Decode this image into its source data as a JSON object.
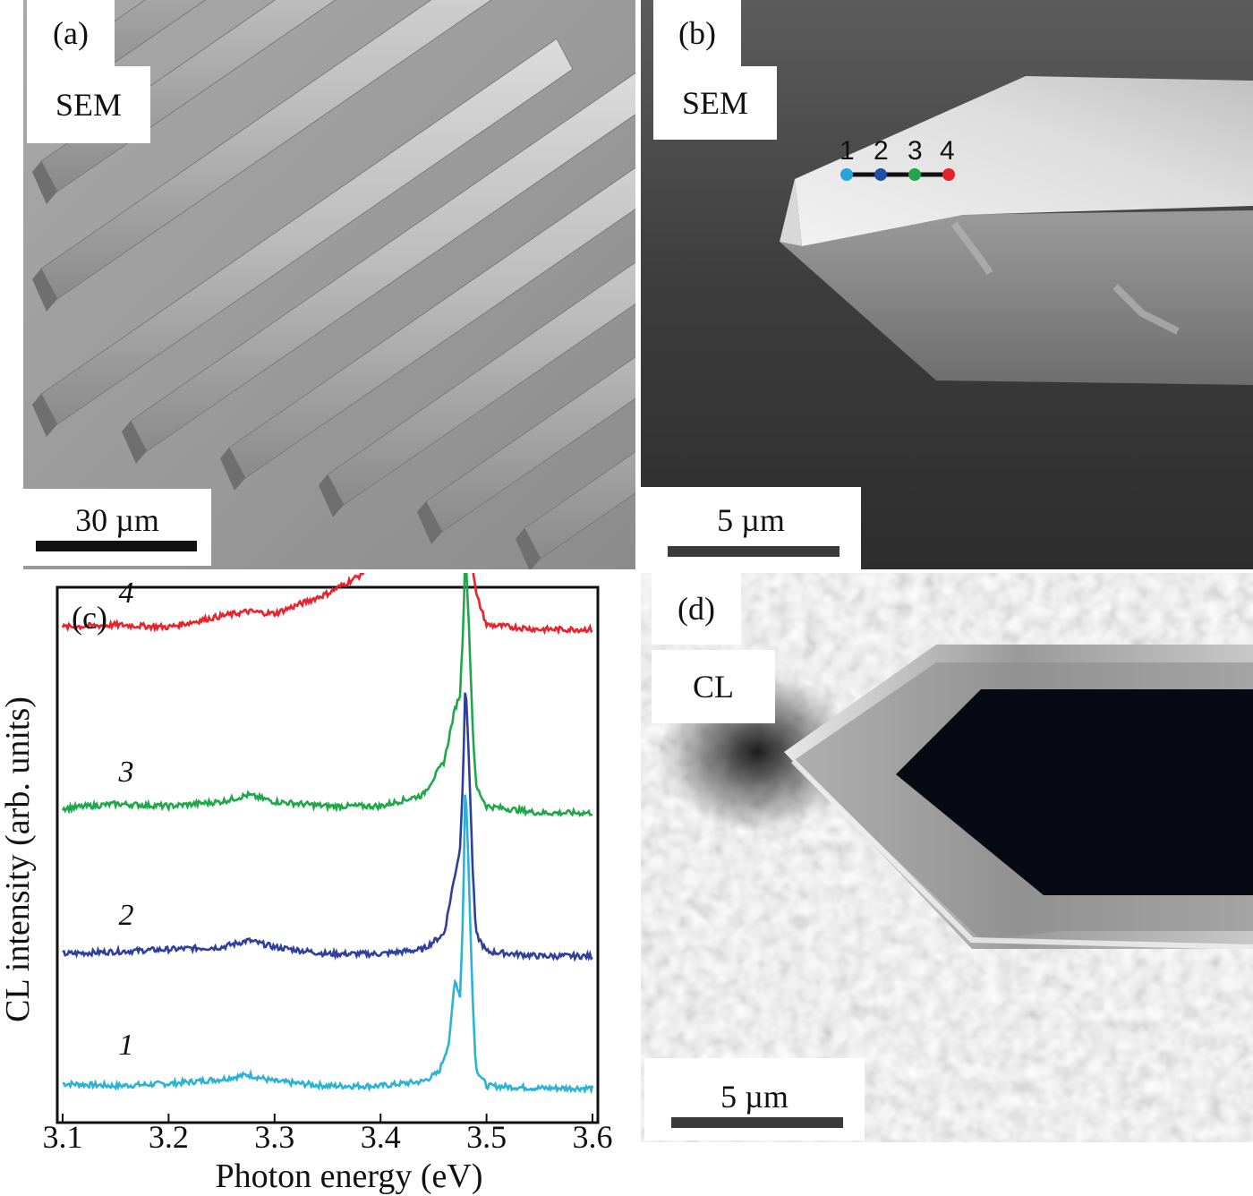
{
  "panel_a": {
    "label": "(a)",
    "tag": "SEM",
    "scale_text": "30 µm"
  },
  "panel_b": {
    "label": "(b)",
    "tag": "SEM",
    "scale_text": "5 µm",
    "points": [
      {
        "label": "1",
        "color": "#29a3dc"
      },
      {
        "label": "2",
        "color": "#1f4fa8"
      },
      {
        "label": "3",
        "color": "#1fa64a"
      },
      {
        "label": "4",
        "color": "#e8202a"
      }
    ]
  },
  "panel_c": {
    "label": "(c)"
  },
  "panel_d": {
    "label": "(d)",
    "tag": "CL",
    "scale_text": "5 µm"
  },
  "chart_data": {
    "type": "line",
    "title": "",
    "xlabel": "Photon energy (eV)",
    "ylabel": "CL intensity (arb. units)",
    "xlim": [
      3.1,
      3.6
    ],
    "xticks": [
      "3.1",
      "3.2",
      "3.3",
      "3.4",
      "3.5",
      "3.6"
    ],
    "grid": false,
    "legend": "none",
    "series": [
      {
        "name": "1",
        "color": "#29b3d6",
        "offset": 0,
        "x": [
          3.1,
          3.15,
          3.2,
          3.25,
          3.275,
          3.3,
          3.35,
          3.4,
          3.44,
          3.455,
          3.465,
          3.47,
          3.475,
          3.478,
          3.48,
          3.483,
          3.487,
          3.49,
          3.5,
          3.55,
          3.6
        ],
        "y": [
          0.03,
          0.02,
          0.03,
          0.05,
          0.07,
          0.04,
          0.02,
          0.02,
          0.04,
          0.08,
          0.22,
          0.5,
          0.42,
          0.8,
          1.4,
          1.0,
          0.4,
          0.1,
          0.02,
          0.01,
          0.01
        ]
      },
      {
        "name": "2",
        "color": "#2e3f9e",
        "offset": 0.58,
        "x": [
          3.1,
          3.15,
          3.2,
          3.25,
          3.275,
          3.3,
          3.35,
          3.4,
          3.44,
          3.46,
          3.47,
          3.475,
          3.478,
          3.48,
          3.483,
          3.487,
          3.49,
          3.5,
          3.55,
          3.6
        ],
        "y": [
          0.03,
          0.04,
          0.05,
          0.06,
          0.09,
          0.06,
          0.03,
          0.03,
          0.05,
          0.12,
          0.38,
          0.5,
          0.85,
          1.25,
          0.95,
          0.4,
          0.12,
          0.04,
          0.02,
          0.02
        ]
      },
      {
        "name": "3",
        "color": "#1fa84a",
        "offset": 1.22,
        "x": [
          3.1,
          3.15,
          3.2,
          3.25,
          3.275,
          3.3,
          3.35,
          3.4,
          3.44,
          3.46,
          3.47,
          3.475,
          3.478,
          3.48,
          3.483,
          3.487,
          3.49,
          3.5,
          3.55,
          3.6
        ],
        "y": [
          0.04,
          0.06,
          0.05,
          0.07,
          0.1,
          0.07,
          0.05,
          0.05,
          0.1,
          0.25,
          0.48,
          0.55,
          0.85,
          1.2,
          0.9,
          0.4,
          0.14,
          0.05,
          0.02,
          0.02
        ]
      },
      {
        "name": "4",
        "color": "#e8232b",
        "offset": 2.02,
        "x": [
          3.1,
          3.15,
          3.2,
          3.25,
          3.275,
          3.3,
          3.35,
          3.38,
          3.4,
          3.42,
          3.44,
          3.45,
          3.46,
          3.47,
          3.475,
          3.48,
          3.485,
          3.49,
          3.5,
          3.55,
          3.6
        ],
        "y": [
          0.05,
          0.06,
          0.05,
          0.1,
          0.12,
          0.11,
          0.2,
          0.28,
          0.38,
          0.65,
          1.1,
          1.15,
          0.95,
          0.5,
          0.65,
          0.72,
          0.4,
          0.2,
          0.06,
          0.04,
          0.04
        ]
      }
    ]
  }
}
